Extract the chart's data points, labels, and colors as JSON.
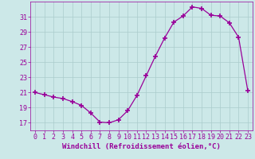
{
  "hours": [
    0,
    1,
    2,
    3,
    4,
    5,
    6,
    7,
    8,
    9,
    10,
    11,
    12,
    13,
    14,
    15,
    16,
    17,
    18,
    19,
    20,
    21,
    22,
    23
  ],
  "values": [
    21.0,
    20.7,
    20.4,
    20.2,
    19.8,
    19.3,
    18.3,
    17.1,
    17.0,
    17.4,
    18.6,
    20.6,
    23.2,
    25.8,
    28.2,
    30.3,
    31.1,
    32.3,
    32.1,
    31.2,
    31.1,
    30.2,
    28.3,
    21.2
  ],
  "line_color": "#990099",
  "marker": "+",
  "marker_size": 4.0,
  "marker_edge_width": 1.2,
  "background_color": "#cce8e8",
  "grid_color": "#aacccc",
  "xlabel": "Windchill (Refroidissement éolien,°C)",
  "ylabel": "",
  "title": "",
  "xlim": [
    -0.5,
    23.5
  ],
  "ylim": [
    16.0,
    33.0
  ],
  "yticks": [
    17,
    19,
    21,
    23,
    25,
    27,
    29,
    31
  ],
  "xticks": [
    0,
    1,
    2,
    3,
    4,
    5,
    6,
    7,
    8,
    9,
    10,
    11,
    12,
    13,
    14,
    15,
    16,
    17,
    18,
    19,
    20,
    21,
    22,
    23
  ],
  "xlabel_fontsize": 6.5,
  "tick_fontsize": 6,
  "line_width": 0.9
}
